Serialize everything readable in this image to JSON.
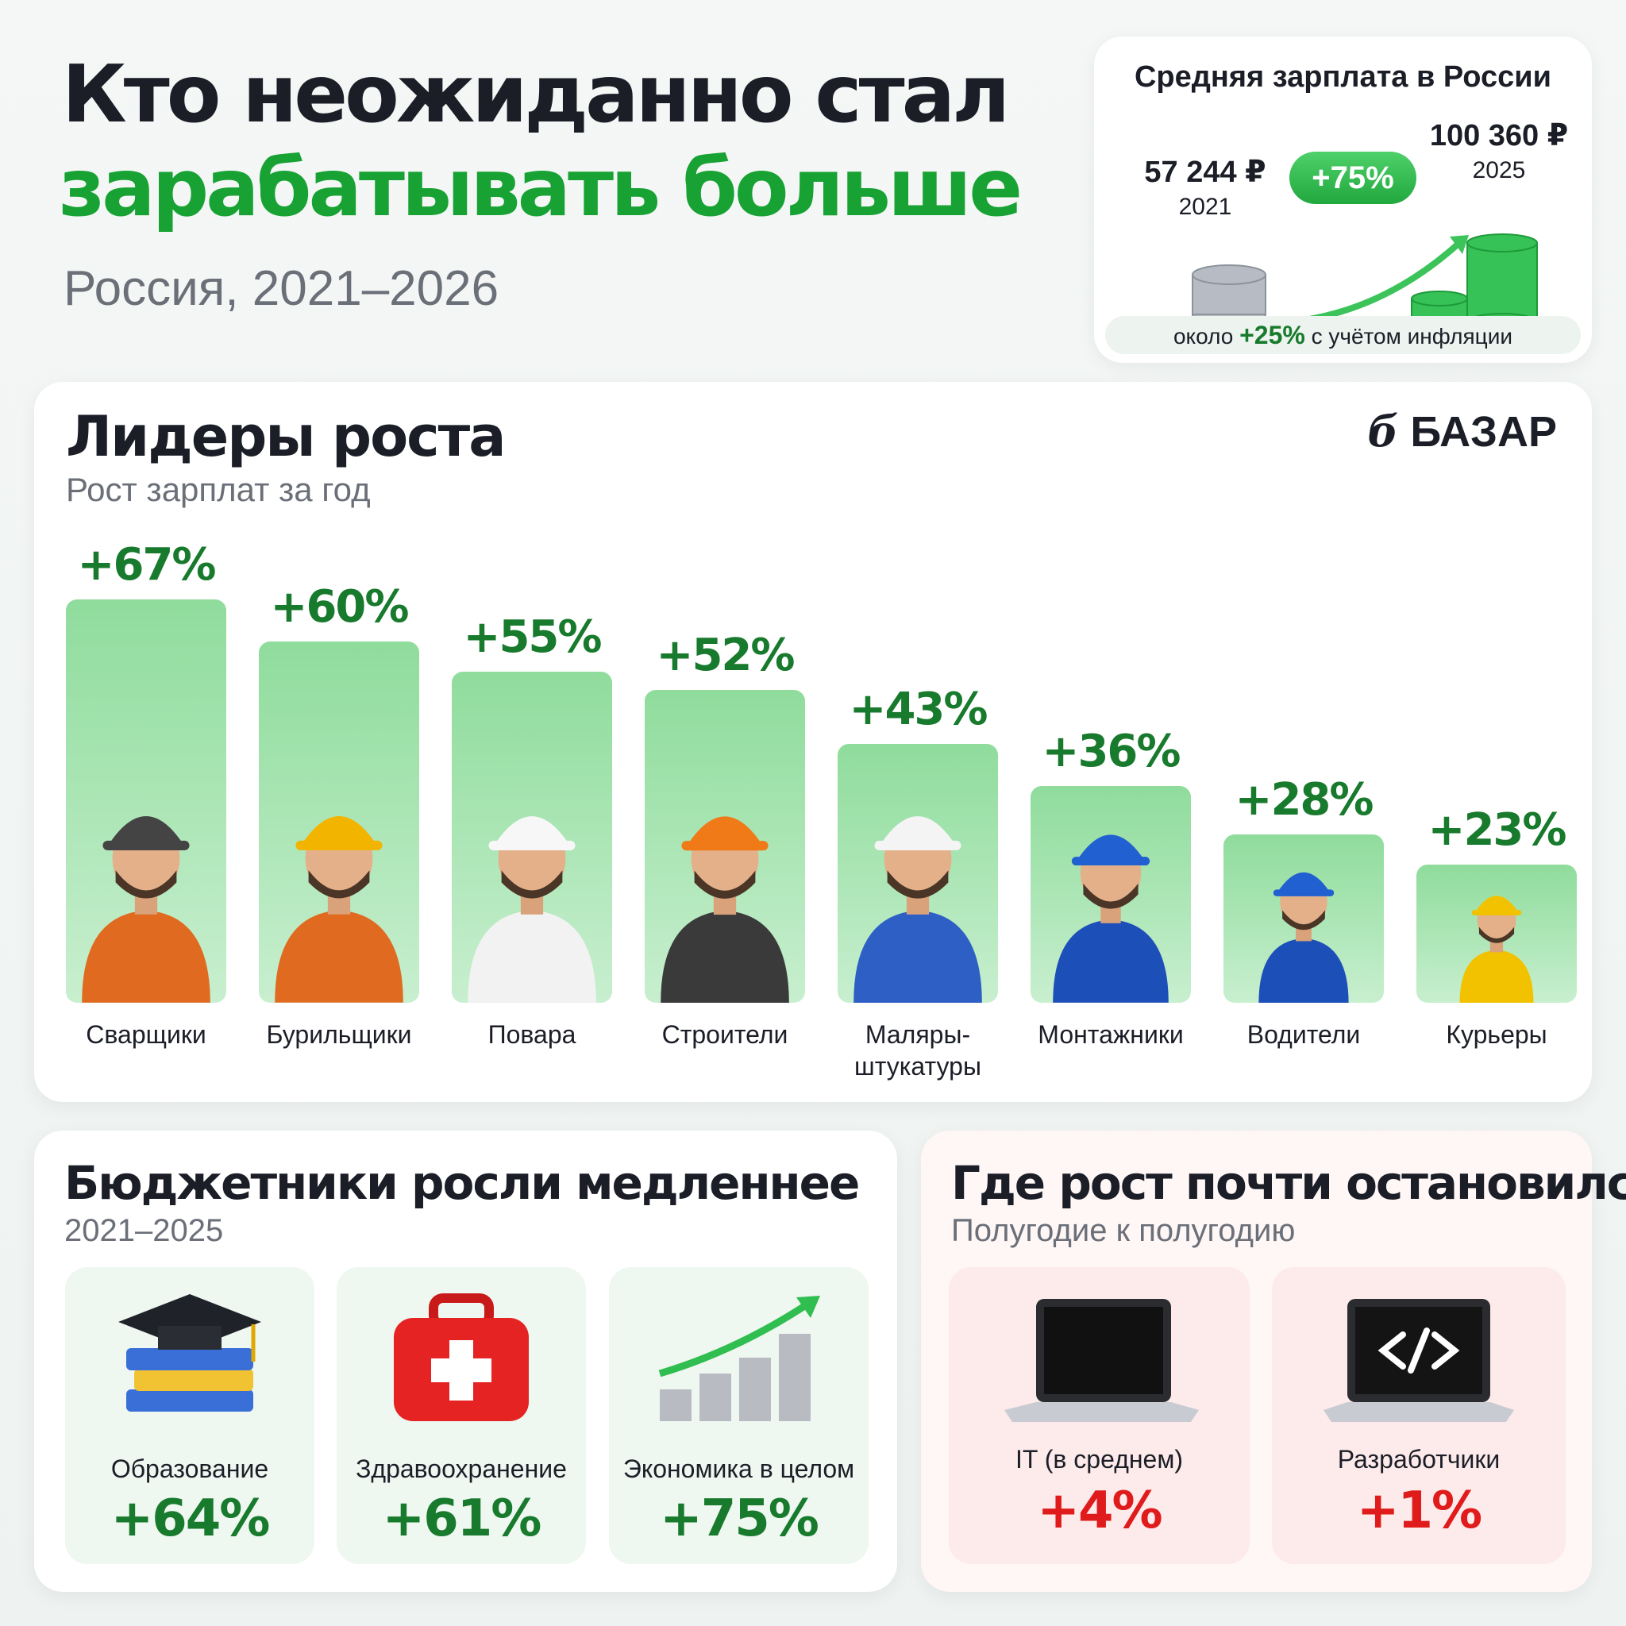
{
  "header": {
    "title_line1": "Кто неожиданно стал",
    "title_line2": "зарабатывать больше",
    "subtitle": "Россия, 2021–2026"
  },
  "salary_card": {
    "title": "Средняя зарплата в России",
    "from_value": "57 244 ₽",
    "from_year": "2021",
    "change": "+75%",
    "to_value": "100 360 ₽",
    "to_year": "2025",
    "note_prefix": "около",
    "note_value": "+25%",
    "note_suffix": "с учётом инфляции"
  },
  "chart_data": {
    "type": "bar",
    "title": "Лидеры роста",
    "subtitle": "Рост зарплат за год",
    "brand": "БАЗАР",
    "categories": [
      "Сварщики",
      "Бурильщики",
      "Повара",
      "Строители",
      "Маляры-\nштукатуры",
      "Монтажники",
      "Водители",
      "Курьеры"
    ],
    "values": [
      67,
      60,
      55,
      52,
      43,
      36,
      28,
      23
    ],
    "value_labels": [
      "+67%",
      "+60%",
      "+55%",
      "+52%",
      "+43%",
      "+36%",
      "+28%",
      "+23%"
    ],
    "color": "#8fdc9c"
  },
  "budget": {
    "title": "Бюджетники росли медленнее",
    "subtitle": "2021–2025",
    "items": [
      {
        "label": "Образование",
        "value": "+64%"
      },
      {
        "label": "Здравоохранение",
        "value": "+61%"
      },
      {
        "label": "Экономика в целом",
        "value": "+75%"
      }
    ]
  },
  "stalled": {
    "title": "Где рост почти остановился",
    "subtitle": "Полугодие к полугодию",
    "items": [
      {
        "label": "IT (в среднем)",
        "value": "+4%"
      },
      {
        "label": "Разработчики",
        "value": "+1%"
      }
    ]
  }
}
